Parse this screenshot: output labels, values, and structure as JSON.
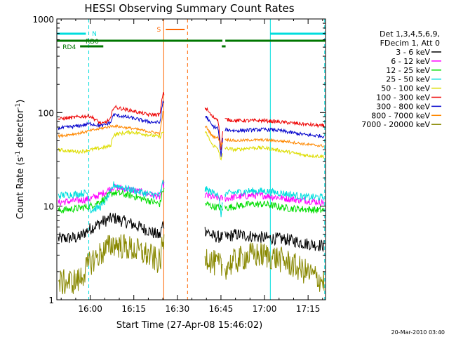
{
  "chart_data": {
    "type": "line",
    "title": "HESSI Observing Summary Count Rates",
    "xlabel": "Start Time (27-Apr-08 15:46:02)",
    "ylabel_main": "Count Rate (s",
    "ylabel_sup1": "-1",
    "ylabel_mid": " detector",
    "ylabel_sup2": "-1",
    "ylabel_end": ")",
    "y_scale": "log",
    "ylim": [
      1,
      1000
    ],
    "xlim_minutes": [
      -11.5,
      81
    ],
    "x_ticks": [
      {
        "label": "16:00",
        "minute": 0
      },
      {
        "label": "16:15",
        "minute": 15
      },
      {
        "label": "16:30",
        "minute": 30
      },
      {
        "label": "16:45",
        "minute": 45
      },
      {
        "label": "17:00",
        "minute": 60
      },
      {
        "label": "17:15",
        "minute": 75
      }
    ],
    "y_ticks": [
      {
        "label": "1",
        "value": 1
      },
      {
        "label": "10",
        "value": 10
      },
      {
        "label": "100",
        "value": 100
      },
      {
        "label": "1000",
        "value": 1000
      }
    ],
    "legend": {
      "placement": "right",
      "header": [
        "Det 1,3,4,5,6,9,",
        "FDecim 1, Att 0"
      ]
    },
    "gaps": [
      [
        25.5,
        39.5
      ],
      [
        45.8,
        46.3
      ]
    ],
    "series": [
      {
        "name": "3 - 6 keV",
        "color": "#000000",
        "noise": 0.07,
        "x": [
          -11,
          -4,
          -1,
          4,
          8,
          14,
          20,
          24,
          25,
          40,
          42,
          46,
          50,
          55,
          60,
          64,
          68,
          74,
          80
        ],
        "y": [
          4.5,
          4.6,
          5.5,
          6.8,
          7.5,
          6.5,
          5.5,
          4.8,
          6.5,
          5.5,
          4.8,
          4.6,
          5.0,
          4.8,
          4.6,
          4.5,
          4.4,
          4.0,
          3.8
        ]
      },
      {
        "name": "6 - 12 keV",
        "color": "#ff00ff",
        "noise": 0.04,
        "x": [
          -11,
          -4,
          0,
          4,
          8,
          14,
          20,
          24,
          25,
          40,
          42,
          46,
          50,
          55,
          60,
          64,
          68,
          74,
          80
        ],
        "y": [
          11,
          11.5,
          12,
          13.5,
          16,
          15,
          13.5,
          12.5,
          17,
          13,
          12.5,
          12,
          12.5,
          13,
          13,
          12.5,
          12,
          11.5,
          11
        ]
      },
      {
        "name": "12 - 25 keV",
        "color": "#00dd00",
        "noise": 0.04,
        "x": [
          -11,
          -4,
          0,
          4,
          8,
          14,
          20,
          24,
          25,
          40,
          42,
          46,
          50,
          55,
          60,
          64,
          68,
          74,
          80
        ],
        "y": [
          9,
          9.5,
          10,
          11.5,
          14,
          13,
          11.5,
          10.5,
          15,
          10.5,
          10,
          9.5,
          10,
          10.5,
          10.5,
          10,
          9.5,
          9.3,
          9
        ]
      },
      {
        "name": "25 - 50 keV",
        "color": "#00dddd",
        "noise": 0.04,
        "x": [
          -11,
          -4,
          -1,
          0,
          4,
          7,
          8,
          14,
          20,
          24,
          25,
          40,
          42,
          44,
          45,
          46,
          50,
          55,
          60,
          64,
          68,
          74,
          80
        ],
        "y": [
          13,
          13.5,
          14,
          9,
          10,
          14,
          17,
          15,
          13.5,
          13,
          18,
          15,
          14,
          14,
          8,
          13.5,
          14,
          14.5,
          14.5,
          14,
          13.5,
          12.5,
          12.5
        ]
      },
      {
        "name": "50 - 100 keV",
        "color": "#dddd00",
        "noise": 0.02,
        "x": [
          -11,
          -4,
          0,
          4,
          7,
          8,
          14,
          20,
          24,
          25,
          40,
          42,
          44,
          45,
          46,
          50,
          55,
          60,
          64,
          68,
          74,
          80
        ],
        "y": [
          40,
          38,
          40,
          42,
          44,
          58,
          62,
          58,
          55,
          62,
          60,
          45,
          42,
          30,
          42,
          40,
          42,
          42,
          40,
          38,
          35,
          34
        ]
      },
      {
        "name": "100 - 300 keV",
        "color": "#ee0000",
        "noise": 0.02,
        "x": [
          -11,
          -4,
          0,
          4,
          7,
          8,
          14,
          20,
          24,
          25,
          40,
          42,
          44,
          45,
          46,
          50,
          55,
          60,
          64,
          68,
          74,
          80
        ],
        "y": [
          85,
          90,
          92,
          75,
          85,
          115,
          105,
          95,
          95,
          160,
          110,
          90,
          85,
          40,
          85,
          82,
          82,
          82,
          80,
          78,
          75,
          72
        ]
      },
      {
        "name": "300 - 800 keV",
        "color": "#0000cc",
        "noise": 0.02,
        "x": [
          -11,
          -4,
          0,
          4,
          7,
          8,
          14,
          20,
          24,
          25,
          40,
          42,
          44,
          45,
          46,
          50,
          55,
          60,
          64,
          68,
          74,
          80
        ],
        "y": [
          68,
          72,
          76,
          72,
          78,
          95,
          88,
          80,
          78,
          130,
          90,
          72,
          68,
          34,
          66,
          64,
          65,
          66,
          65,
          62,
          58,
          56
        ]
      },
      {
        "name": "800 - 7000 keV",
        "color": "#ff8800",
        "noise": 0.015,
        "x": [
          -11,
          -4,
          0,
          4,
          8,
          14,
          20,
          24,
          25,
          40,
          42,
          44,
          45,
          46,
          50,
          55,
          60,
          64,
          68,
          74,
          80
        ],
        "y": [
          56,
          60,
          64,
          68,
          72,
          68,
          63,
          60,
          100,
          70,
          56,
          54,
          44,
          52,
          50,
          51,
          51,
          50,
          49,
          46,
          44
        ]
      },
      {
        "name": "7000 - 20000 keV",
        "color": "#888800",
        "noise": 0.15,
        "x": [
          -11,
          -4,
          0,
          4,
          8,
          14,
          20,
          24,
          25,
          40,
          42,
          46,
          50,
          55,
          60,
          64,
          68,
          74,
          80
        ],
        "y": [
          1.5,
          1.6,
          2.5,
          3.2,
          4,
          3.5,
          3,
          2.5,
          4,
          3,
          2.5,
          2.2,
          2.6,
          3,
          3,
          2.8,
          2.5,
          2,
          1.6
        ]
      }
    ],
    "annotations": [
      {
        "label": "N",
        "color": "#00dddd"
      },
      {
        "label": "RD0",
        "color": "#007700"
      },
      {
        "label": "RD4",
        "color": "#007700"
      },
      {
        "label": "S",
        "color": "#ff6600"
      }
    ]
  },
  "footer": {
    "timestamp": "20-Mar-2010 03:40"
  }
}
